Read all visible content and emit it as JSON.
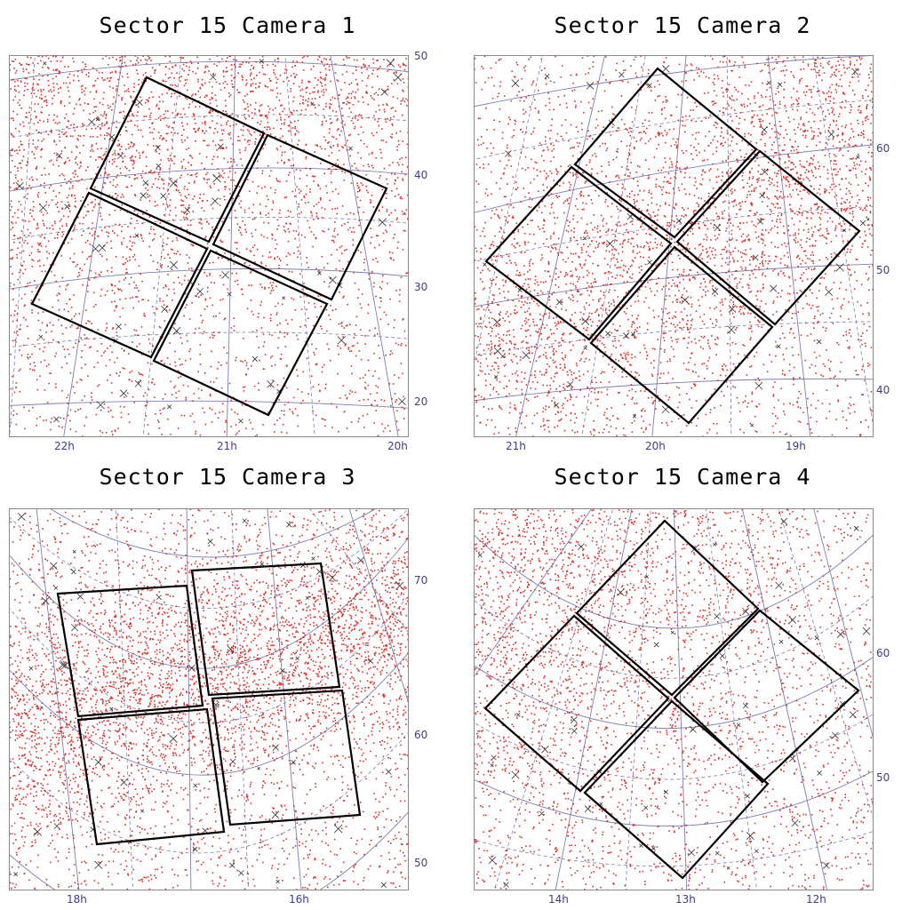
{
  "chart_data": [
    {
      "type": "scatter",
      "title": "Sector 15 Camera 1",
      "x_ticks": [
        "22h",
        "21h",
        "20h"
      ],
      "y_ticks": [
        "50",
        "40",
        "30",
        "20"
      ],
      "point_color": "#d9342b",
      "cross_color": "#333333",
      "frame_color": "#000000",
      "grid_color": "#7c7cb6"
    },
    {
      "type": "scatter",
      "title": "Sector 15 Camera 2",
      "x_ticks": [
        "21h",
        "20h",
        "19h"
      ],
      "y_ticks": [
        "60",
        "50",
        "40"
      ],
      "point_color": "#d9342b",
      "cross_color": "#333333",
      "frame_color": "#000000",
      "grid_color": "#7c7cb6"
    },
    {
      "type": "scatter",
      "title": "Sector 15 Camera 3",
      "x_ticks": [
        "18h",
        "16h"
      ],
      "y_ticks": [
        "70",
        "60",
        "50"
      ],
      "point_color": "#d9342b",
      "cross_color": "#333333",
      "frame_color": "#000000",
      "grid_color": "#7c7cb6"
    },
    {
      "type": "scatter",
      "title": "Sector 15 Camera 4",
      "x_ticks": [
        "14h",
        "13h",
        "12h"
      ],
      "y_ticks": [
        "60",
        "50"
      ],
      "point_color": "#d9342b",
      "cross_color": "#333333",
      "frame_color": "#000000",
      "grid_color": "#7c7cb6"
    }
  ]
}
